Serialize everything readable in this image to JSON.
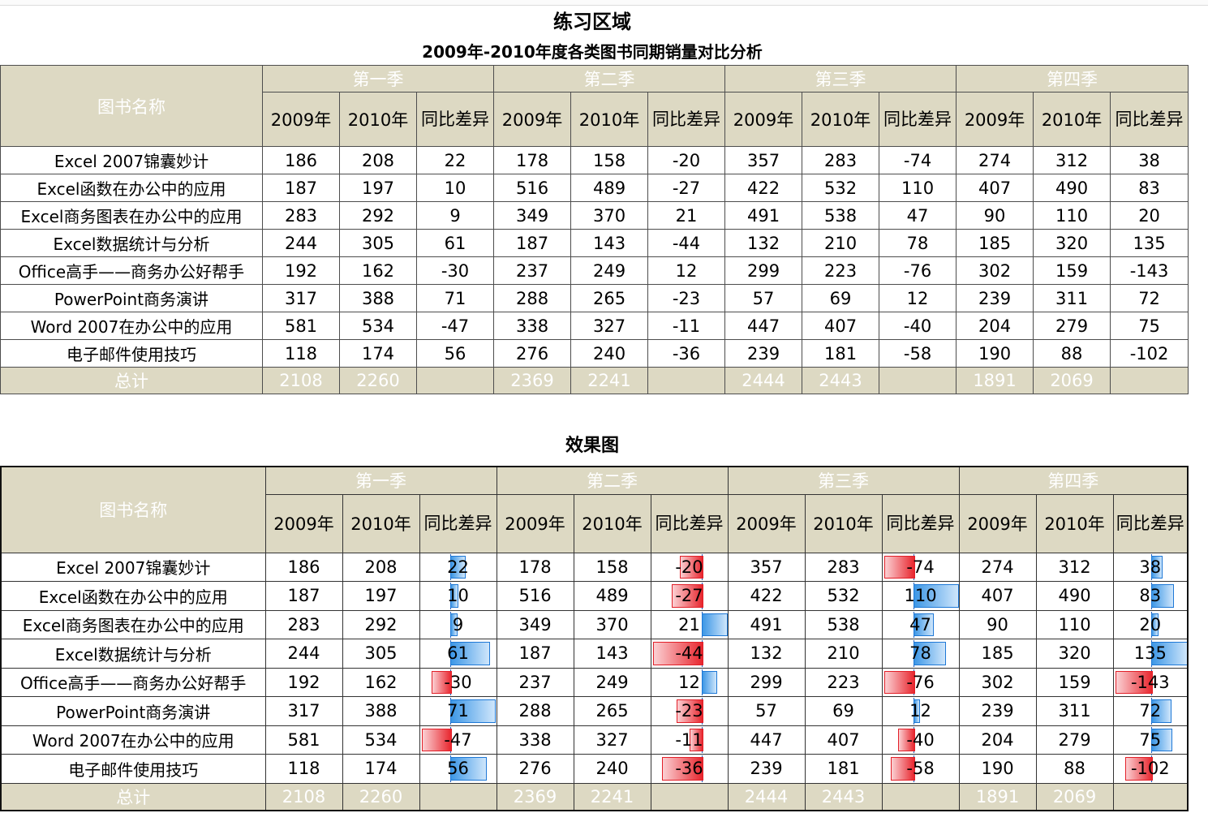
{
  "title_practice": "练习区域",
  "subtitle": "2009年-2010年度各类图书同期销量对比分析",
  "title_result": "效果图",
  "name_header": "图书名称",
  "quarters": [
    "第一季",
    "第二季",
    "第三季",
    "第四季"
  ],
  "year_labels": [
    "2009年",
    "2010年"
  ],
  "diff_label": "同比差异",
  "total_label": "总计",
  "rows": [
    {
      "name": "Excel 2007锦囊妙计",
      "values": [
        186,
        208,
        22,
        178,
        158,
        -20,
        357,
        283,
        -74,
        274,
        312,
        38
      ]
    },
    {
      "name": "Excel函数在办公中的应用",
      "values": [
        187,
        197,
        10,
        516,
        489,
        -27,
        422,
        532,
        110,
        407,
        490,
        83
      ]
    },
    {
      "name": "Excel商务图表在办公中的应用",
      "values": [
        283,
        292,
        9,
        349,
        370,
        21,
        491,
        538,
        47,
        90,
        110,
        20
      ]
    },
    {
      "name": "Excel数据统计与分析",
      "values": [
        244,
        305,
        61,
        187,
        143,
        -44,
        132,
        210,
        78,
        185,
        320,
        135
      ]
    },
    {
      "name": "Office高手——商务办公好帮手",
      "values": [
        192,
        162,
        -30,
        237,
        249,
        12,
        299,
        223,
        -76,
        302,
        159,
        -143
      ]
    },
    {
      "name": "PowerPoint商务演讲",
      "values": [
        317,
        388,
        71,
        288,
        265,
        -23,
        57,
        69,
        12,
        239,
        311,
        72
      ]
    },
    {
      "name": "Word 2007在办公中的应用",
      "values": [
        581,
        534,
        -47,
        338,
        327,
        -11,
        447,
        407,
        -40,
        204,
        279,
        75
      ]
    },
    {
      "name": "电子邮件使用技巧",
      "values": [
        118,
        174,
        56,
        276,
        240,
        -36,
        239,
        181,
        -58,
        190,
        88,
        -102
      ]
    }
  ],
  "totals": [
    2108,
    2260,
    "",
    2369,
    2241,
    "",
    2444,
    2443,
    "",
    1891,
    2069,
    ""
  ]
}
